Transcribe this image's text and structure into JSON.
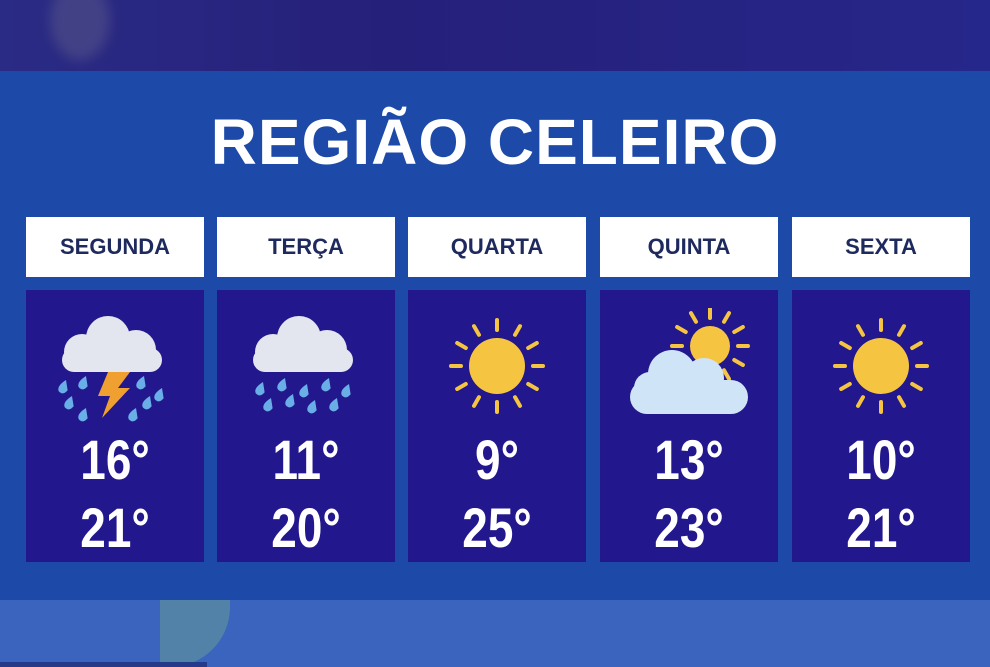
{
  "title": "REGIÃO CELEIRO",
  "days": [
    {
      "name": "SEGUNDA",
      "icon": "thunderstorm-rain-icon",
      "min": "16°",
      "max": "21°"
    },
    {
      "name": "TERÇA",
      "icon": "rain-cloud-icon",
      "min": "11°",
      "max": "20°"
    },
    {
      "name": "QUARTA",
      "icon": "sun-icon",
      "min": "9°",
      "max": "25°"
    },
    {
      "name": "QUINTA",
      "icon": "partly-cloudy-icon",
      "min": "13°",
      "max": "23°"
    },
    {
      "name": "SEXTA",
      "icon": "sun-icon",
      "min": "10°",
      "max": "21°"
    }
  ],
  "colors": {
    "panel": "#1d4aa8",
    "card": "#22178c",
    "header_text": "#1e2a5e",
    "sun": "#f5c542",
    "bolt": "#f0a030",
    "drop": "#6aaee8",
    "cloud": "#e3e6ee"
  }
}
